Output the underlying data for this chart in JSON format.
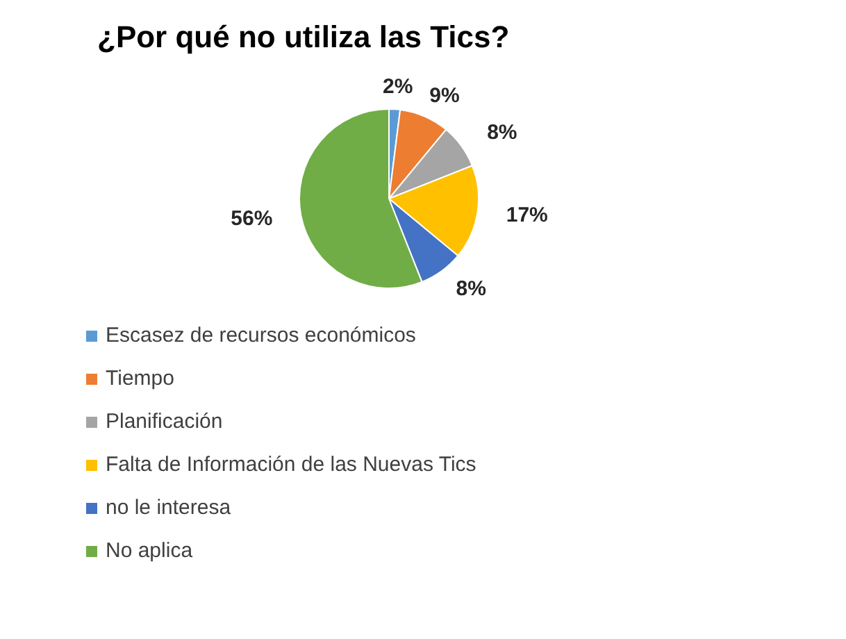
{
  "chart_data": {
    "type": "pie",
    "title": "¿Por qué no utiliza las Tics?",
    "categories": [
      "Escasez de recursos económicos",
      "Tiempo",
      "Planificación",
      "Falta de Información de las Nuevas Tics",
      "no le interesa",
      "No aplica"
    ],
    "values": [
      2,
      9,
      8,
      17,
      8,
      56
    ],
    "colors": [
      "#5b9bd5",
      "#ed7d31",
      "#a5a5a5",
      "#ffc000",
      "#4472c4",
      "#70ad47"
    ],
    "value_labels": [
      "2%",
      "9%",
      "8%",
      "17%",
      "8%",
      "56%"
    ],
    "legend": "bottom"
  }
}
